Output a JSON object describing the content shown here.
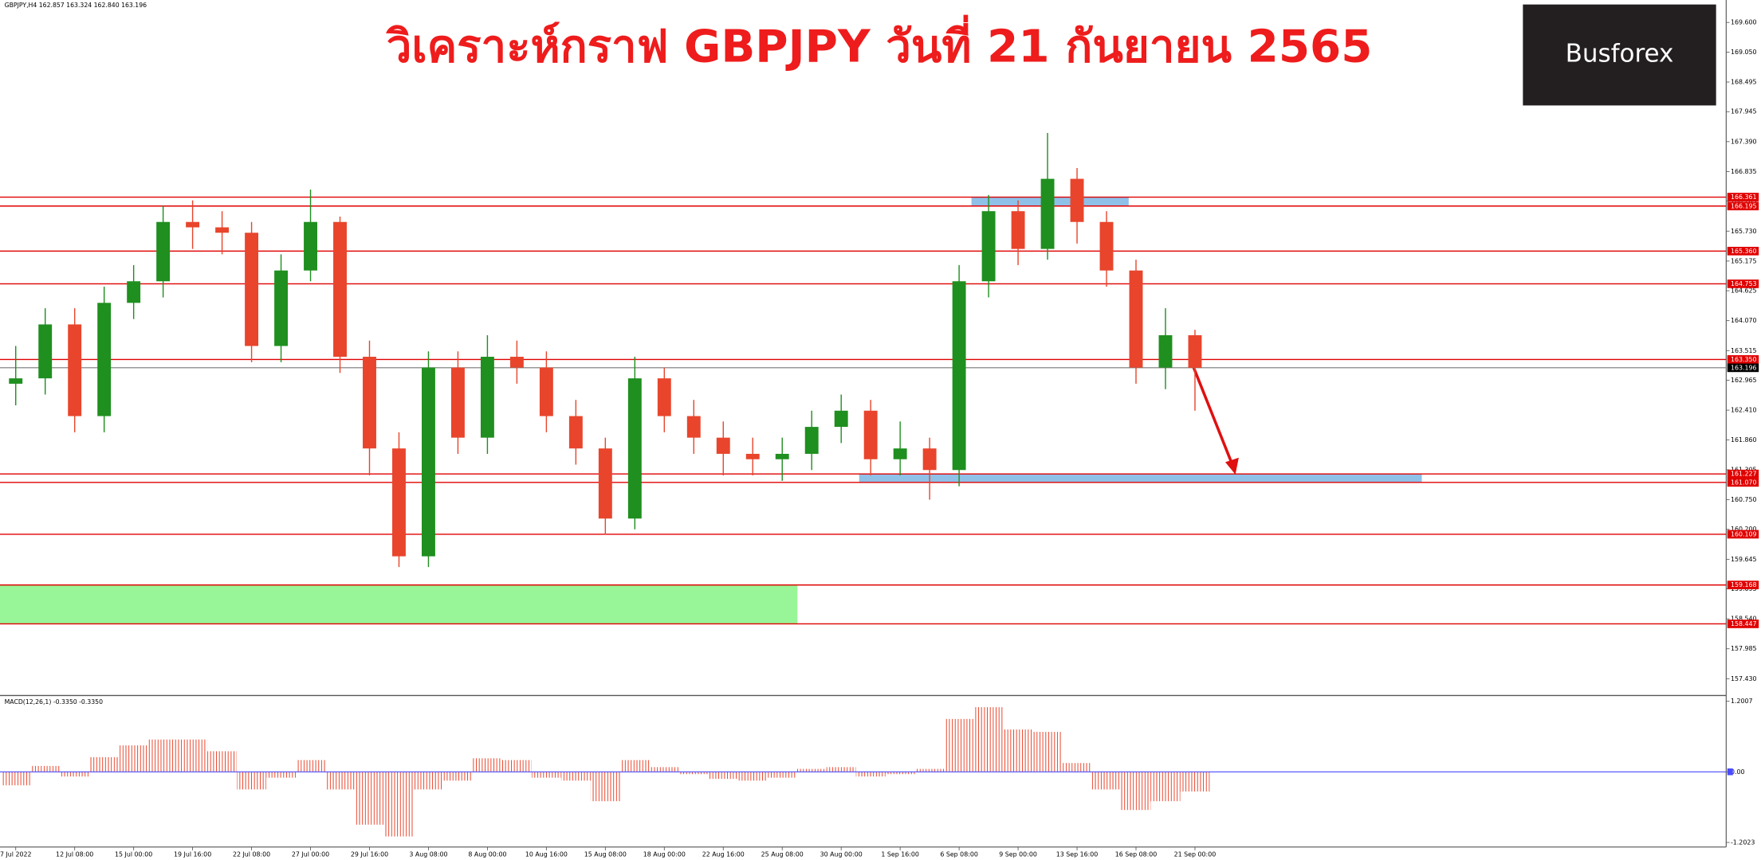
{
  "chart_data": {
    "type": "candlestick",
    "info": "GBPJPY,H4  162.857 163.324 162.840 163.196",
    "title": "วิเคราะห์กราฟ GBPJPY วันที่ 21 กันยายน 2565",
    "logo": "Busforex",
    "categories": [
      "7 Jul 2022",
      null,
      "12 Jul 08:00",
      null,
      "15 Jul 00:00",
      null,
      "19 Jul 16:00",
      null,
      "22 Jul 08:00",
      null,
      "27 Jul 00:00",
      null,
      "29 Jul 16:00",
      null,
      "3 Aug 08:00",
      null,
      "8 Aug 00:00",
      null,
      "10 Aug 16:00",
      null,
      "15 Aug 08:00",
      null,
      "18 Aug 00:00",
      null,
      "22 Aug 16:00",
      null,
      "25 Aug 08:00",
      null,
      "30 Aug 00:00",
      null,
      "1 Sep 16:00",
      null,
      "6 Sep 08:00",
      null,
      "9 Sep 00:00",
      null,
      "13 Sep 16:00",
      null,
      "16 Sep 08:00",
      null,
      "21 Sep 00:00"
    ],
    "open": [
      162.9,
      163.0,
      164.0,
      162.3,
      164.4,
      164.8,
      165.9,
      165.8,
      165.7,
      163.6,
      165.0,
      165.9,
      163.4,
      161.7,
      159.7,
      163.2,
      161.9,
      163.4,
      163.2,
      162.3,
      161.7,
      160.4,
      163.0,
      162.3,
      161.9,
      161.6,
      161.5,
      161.6,
      162.1,
      162.4,
      161.5,
      161.7,
      161.3,
      164.8,
      166.1,
      165.4,
      166.7,
      165.9,
      165.0,
      163.2,
      163.8
    ],
    "high": [
      163.6,
      164.3,
      164.3,
      164.7,
      165.1,
      166.2,
      166.3,
      166.1,
      165.9,
      165.3,
      166.5,
      166.0,
      163.7,
      162.0,
      163.5,
      163.5,
      163.8,
      163.7,
      163.5,
      162.6,
      161.9,
      163.4,
      163.2,
      162.6,
      162.2,
      161.9,
      161.9,
      162.4,
      162.7,
      162.6,
      162.2,
      161.9,
      165.1,
      166.4,
      166.3,
      167.55,
      166.9,
      166.1,
      165.2,
      164.3,
      163.9
    ],
    "low": [
      162.5,
      162.7,
      162.0,
      162.0,
      164.1,
      164.5,
      165.4,
      165.3,
      163.3,
      163.3,
      164.8,
      163.1,
      161.2,
      159.5,
      159.5,
      161.6,
      161.6,
      162.9,
      162.0,
      161.4,
      160.1,
      160.2,
      162.0,
      161.6,
      161.2,
      161.2,
      161.1,
      161.3,
      161.8,
      161.2,
      161.2,
      160.75,
      161.0,
      164.5,
      165.1,
      165.2,
      165.5,
      164.7,
      162.9,
      162.8,
      162.4
    ],
    "close": [
      163.0,
      164.0,
      162.3,
      164.4,
      164.8,
      165.9,
      165.8,
      165.7,
      163.6,
      165.0,
      165.9,
      163.4,
      161.7,
      159.7,
      163.2,
      161.9,
      163.4,
      163.2,
      162.3,
      161.7,
      160.4,
      163.0,
      162.3,
      161.9,
      161.6,
      161.5,
      161.6,
      162.1,
      162.4,
      161.5,
      161.7,
      161.3,
      164.8,
      166.1,
      165.4,
      166.7,
      165.9,
      165.0,
      163.2,
      163.8,
      163.196
    ],
    "up_color": "#1f8f1f",
    "down_color": "#e8452c",
    "ylim": [
      157.118,
      170.016
    ],
    "yticks": [
      {
        "value": 169.6,
        "label": "169.600"
      },
      {
        "value": 169.05,
        "label": "169.050"
      },
      168.495,
      167.945,
      {
        "value": 167.39,
        "label": "167.390"
      },
      166.835,
      166.285,
      {
        "value": 165.73,
        "label": "165.730"
      },
      165.175,
      164.625,
      {
        "value": 164.07,
        "label": "164.070"
      },
      163.515,
      162.965,
      {
        "value": 162.41,
        "label": "162.410"
      },
      {
        "value": 161.86,
        "label": "161.860"
      },
      161.305,
      {
        "value": 160.75,
        "label": "160.750"
      },
      {
        "value": 160.2,
        "label": "160.200"
      },
      159.645,
      159.095,
      {
        "value": 158.54,
        "label": "158.540"
      },
      157.985,
      {
        "value": 157.43,
        "label": "157.430"
      }
    ],
    "levels": [
      166.361,
      166.195,
      {
        "value": 165.36,
        "label": "165.360"
      },
      164.753,
      {
        "value": 163.35,
        "label": "163.350"
      },
      161.227,
      {
        "value": 161.07,
        "label": "161.070"
      },
      160.109,
      159.168,
      158.447
    ],
    "level_color": "#e00000",
    "last_price": 163.196,
    "macd": {
      "label": "MACD(12,26,1) -0.3350 -0.3350",
      "values": [
        -0.23,
        0.1,
        -0.08,
        0.25,
        0.45,
        0.55,
        0.55,
        0.35,
        -0.3,
        -0.1,
        0.2,
        -0.3,
        -0.9,
        -1.1,
        -0.3,
        -0.15,
        0.23,
        0.2,
        -0.1,
        -0.15,
        -0.5,
        0.2,
        0.08,
        -0.04,
        -0.12,
        -0.15,
        -0.1,
        0.05,
        0.08,
        -0.08,
        -0.04,
        0.05,
        0.9,
        1.1,
        0.72,
        0.68,
        0.15,
        -0.3,
        -0.65,
        -0.5,
        -0.335
      ],
      "color": "#e8452c",
      "zero_color": "#4a4aff",
      "ylim": [
        -1.279,
        1.279
      ],
      "yticks": [
        1.2007,
        {
          "value": 0,
          "label": "0.00"
        },
        -1.2023
      ]
    }
  }
}
